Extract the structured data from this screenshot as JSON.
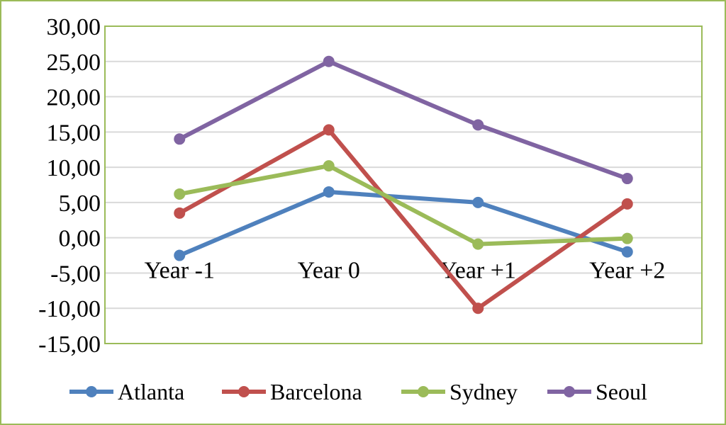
{
  "chart_data": {
    "type": "line",
    "title": "",
    "xlabel": "",
    "ylabel": "",
    "categories": [
      "Year -1",
      "Year 0",
      "Year +1",
      "Year +2"
    ],
    "ylim": [
      -15,
      30
    ],
    "ytick_step": 5,
    "ytick_labels": [
      "-15,00",
      "-10,00",
      "-5,00",
      "0,00",
      "5,00",
      "10,00",
      "15,00",
      "20,00",
      "25,00",
      "30,00"
    ],
    "grid": true,
    "legend_position": "bottom",
    "series": [
      {
        "name": "Atlanta",
        "color": "#4f81bd",
        "values": [
          -2.5,
          6.5,
          5.0,
          -2.0
        ]
      },
      {
        "name": "Barcelona",
        "color": "#c0504d",
        "values": [
          3.5,
          15.3,
          -10.0,
          4.8
        ]
      },
      {
        "name": "Sydney",
        "color": "#9bbb59",
        "values": [
          6.2,
          10.2,
          -0.9,
          -0.1
        ]
      },
      {
        "name": "Seoul",
        "color": "#8064a2",
        "values": [
          14.0,
          25.0,
          16.0,
          8.4
        ]
      }
    ],
    "frame_color": "#9bbb59",
    "plot_border_color": "#9bbb59",
    "gridline_color": "#d9d9d9"
  }
}
